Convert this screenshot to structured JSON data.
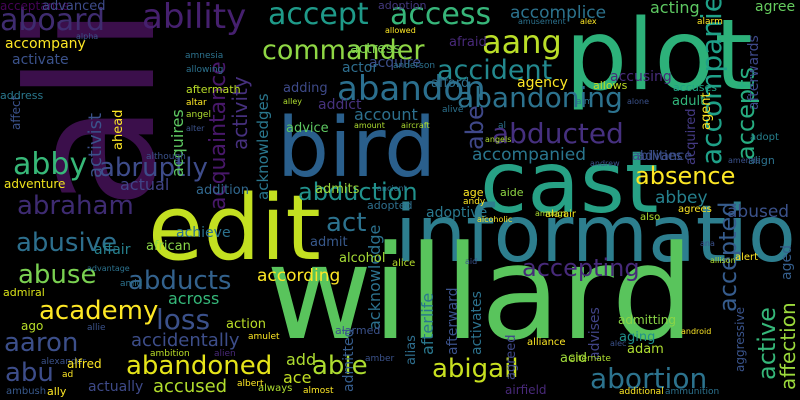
{
  "words": [
    {
      "text": "ali",
      "color": "#3b0f4b"
    },
    {
      "text": "plot",
      "color": "#2db17a"
    },
    {
      "text": "cast",
      "color": "#27a185"
    },
    {
      "text": "bird",
      "color": "#2a5f8c"
    },
    {
      "text": "edit",
      "color": "#c3e021"
    },
    {
      "text": "information",
      "color": "#2d7e8e"
    },
    {
      "text": "willard",
      "color": "#59c45c"
    },
    {
      "text": "ability",
      "color": "#46206f"
    },
    {
      "text": "accept",
      "color": "#1f9a89"
    },
    {
      "text": "access",
      "color": "#37b67a"
    },
    {
      "text": "accomplice",
      "color": "#2c738e"
    },
    {
      "text": "aboard",
      "color": "#3f2c70"
    },
    {
      "text": "commander",
      "color": "#8fd745"
    },
    {
      "text": "aang",
      "color": "#bade28"
    },
    {
      "text": "abandon",
      "color": "#2b6f8e"
    },
    {
      "text": "abandoning",
      "color": "#2c728e"
    },
    {
      "text": "accident",
      "color": "#23888e"
    },
    {
      "text": "abducted",
      "color": "#46307f"
    },
    {
      "text": "abduction",
      "color": "#21918c"
    },
    {
      "text": "absence",
      "color": "#fde725"
    },
    {
      "text": "abruptly",
      "color": "#3e4c8a"
    },
    {
      "text": "abraham",
      "color": "#3e2b72"
    },
    {
      "text": "abusive",
      "color": "#2d6f8d"
    },
    {
      "text": "abuse",
      "color": "#7ad151"
    },
    {
      "text": "abducts",
      "color": "#33628d"
    },
    {
      "text": "academy",
      "color": "#fde725"
    },
    {
      "text": "loss",
      "color": "#3b518b"
    },
    {
      "text": "aaron",
      "color": "#3c4f8a"
    },
    {
      "text": "abu",
      "color": "#3d4d8a"
    },
    {
      "text": "abandoned",
      "color": "#e5e419"
    },
    {
      "text": "able",
      "color": "#addc30"
    },
    {
      "text": "abigail",
      "color": "#c8e020"
    },
    {
      "text": "abortion",
      "color": "#2c738e"
    },
    {
      "text": "accepting",
      "color": "#472a7a"
    },
    {
      "text": "accompanied",
      "color": "#2a768e"
    },
    {
      "text": "accused",
      "color": "#b2dd2d"
    },
    {
      "text": "accidentally",
      "color": "#3d4e8a"
    },
    {
      "text": "according",
      "color": "#fde725"
    },
    {
      "text": "across",
      "color": "#35b779"
    },
    {
      "text": "abbey",
      "color": "#365c8d"
    },
    {
      "text": "abused",
      "color": "#27ad81"
    },
    {
      "text": "accepted",
      "color": "#1fa188"
    },
    {
      "text": "accepts",
      "color": "#35b779"
    },
    {
      "text": "accompanies",
      "color": "#26818e"
    },
    {
      "text": "active",
      "color": "#3b528b"
    },
    {
      "text": "affection",
      "color": "#9bd93c"
    },
    {
      "text": "abe",
      "color": "#3f4889"
    },
    {
      "text": "abby",
      "color": "#37b878"
    },
    {
      "text": "acquaintance",
      "color": "#48186a"
    },
    {
      "text": "acquires",
      "color": "#5ec962"
    },
    {
      "text": "activist",
      "color": "#3b528b"
    },
    {
      "text": "activity",
      "color": "#46307e"
    },
    {
      "text": "acknowledges",
      "color": "#2a778e"
    },
    {
      "text": "acknowledge",
      "color": "#2c718e"
    },
    {
      "text": "accusing",
      "color": "#472c7a"
    },
    {
      "text": "abilities",
      "color": "#3b528b"
    },
    {
      "text": "adoption",
      "color": "#44397f"
    },
    {
      "text": "actress",
      "color": "#7ad151"
    },
    {
      "text": "acquire",
      "color": "#3c4f8a"
    },
    {
      "text": "actor",
      "color": "#2e6e8e"
    },
    {
      "text": "account",
      "color": "#2d708e"
    },
    {
      "text": "acting",
      "color": "#5ec962"
    },
    {
      "text": "agree",
      "color": "#65cb5e"
    },
    {
      "text": "afterwards",
      "color": "#3e4989"
    },
    {
      "text": "afterlife",
      "color": "#2a788e"
    },
    {
      "text": "acceptance",
      "color": "#450457"
    },
    {
      "text": "achieve",
      "color": "#2c728e"
    },
    {
      "text": "actual",
      "color": "#414487"
    },
    {
      "text": "adventure",
      "color": "#f1e51d"
    },
    {
      "text": "affair",
      "color": "#26828e"
    },
    {
      "text": "african",
      "color": "#89d548"
    },
    {
      "text": "addition",
      "color": "#31688e"
    },
    {
      "text": "act",
      "color": "#2c728e"
    },
    {
      "text": "adoptive",
      "color": "#2a788e"
    },
    {
      "text": "admit",
      "color": "#38598c"
    },
    {
      "text": "alcohol",
      "color": "#a5db36"
    },
    {
      "text": "admits",
      "color": "#9dd93b"
    },
    {
      "text": "ahead",
      "color": "#2e6f8e"
    },
    {
      "text": "adopted",
      "color": "#fde725"
    },
    {
      "text": "advance",
      "color": "#3d4d8a"
    },
    {
      "text": "advice",
      "color": "#5ec962"
    },
    {
      "text": "addict",
      "color": "#46327e"
    },
    {
      "text": "adding",
      "color": "#3e4a89"
    },
    {
      "text": "accompany",
      "color": "#fde725"
    },
    {
      "text": "activate",
      "color": "#3b528b"
    },
    {
      "text": "advanced",
      "color": "#3e4c8a"
    },
    {
      "text": "acquired",
      "color": "#443a83"
    },
    {
      "text": "aggressive",
      "color": "#3a548c"
    },
    {
      "text": "aged",
      "color": "#355f8d"
    },
    {
      "text": "adult",
      "color": "#31b57b"
    },
    {
      "text": "afford",
      "color": "#2e6f8e"
    },
    {
      "text": "afraid",
      "color": "#482979"
    },
    {
      "text": "agency",
      "color": "#fde725"
    },
    {
      "text": "allows",
      "color": "#c0df25"
    },
    {
      "text": "alias",
      "color": "#20a386"
    },
    {
      "text": "admitted",
      "color": "#2e6e8e"
    },
    {
      "text": "accuses",
      "color": "#365d8d"
    },
    {
      "text": "advises",
      "color": "#2e6f8e"
    },
    {
      "text": "activates",
      "color": "#414487"
    },
    {
      "text": "agreed",
      "color": "#2c728e"
    },
    {
      "text": "admitting",
      "color": "#3f4889"
    },
    {
      "text": "aging",
      "color": "#8bd646"
    },
    {
      "text": "adam",
      "color": "#21918c"
    },
    {
      "text": "add",
      "color": "#addc30"
    },
    {
      "text": "ace",
      "color": "#addc30"
    },
    {
      "text": "acid",
      "color": "#c2df23"
    },
    {
      "text": "ago",
      "color": "#9fda3a"
    },
    {
      "text": "admiral",
      "color": "#b8de29"
    },
    {
      "text": "actually",
      "color": "#d8e219"
    },
    {
      "text": "action",
      "color": "#3e4a89"
    },
    {
      "text": "agent",
      "color": "#bade28"
    },
    {
      "text": "afterward",
      "color": "#fde725"
    },
    {
      "text": "address",
      "color": "#3b528b"
    },
    {
      "text": "affect",
      "color": "#2a788e"
    },
    {
      "text": "aftermath",
      "color": "#3b528b"
    },
    {
      "text": "age",
      "color": "#bade28"
    },
    {
      "text": "aide",
      "color": "#fde725"
    },
    {
      "text": "alice",
      "color": "#8fd744"
    },
    {
      "text": "alliance",
      "color": "#b5de2b"
    },
    {
      "text": "alert",
      "color": "#fde725"
    },
    {
      "text": "align",
      "color": "#fde725"
    },
    {
      "text": "adopt",
      "color": "#2c728e"
    },
    {
      "text": "agrees",
      "color": "#26818e"
    },
    {
      "text": "also",
      "color": "#fde725"
    },
    {
      "text": "alarm",
      "color": "#addc30"
    },
    {
      "text": "alan",
      "color": "#fde725"
    },
    {
      "text": "air",
      "color": "#fde725"
    },
    {
      "text": "ambition",
      "color": "#f1e51d"
    },
    {
      "text": "alexander",
      "color": "#bade28"
    },
    {
      "text": "alfred",
      "color": "#3b528b"
    },
    {
      "text": "ad",
      "color": "#fde725"
    },
    {
      "text": "ally",
      "color": "#fde725"
    },
    {
      "text": "ambush",
      "color": "#fde725"
    },
    {
      "text": "almost",
      "color": "#38598c"
    },
    {
      "text": "always",
      "color": "#fde725"
    },
    {
      "text": "airfield",
      "color": "#addc30"
    },
    {
      "text": "additional",
      "color": "#482979"
    },
    {
      "text": "ammunition",
      "color": "#fde725"
    },
    {
      "text": "android",
      "color": "#2c728e"
    },
    {
      "text": "amy",
      "color": "#fde725"
    },
    {
      "text": "amber",
      "color": "#fde725"
    },
    {
      "text": "alternate",
      "color": "#3b528b"
    },
    {
      "text": "ambrose",
      "color": "#addc30"
    },
    {
      "text": "alongside",
      "color": "#2c728e"
    },
    {
      "text": "alarmed",
      "color": "#addc30"
    },
    {
      "text": "advantage",
      "color": "#3b528b"
    },
    {
      "text": "amid",
      "color": "#2c728e"
    },
    {
      "text": "allie",
      "color": "#2c728e"
    },
    {
      "text": "alerted",
      "color": "#3b528b"
    },
    {
      "text": "amulet",
      "color": "#3b528b"
    },
    {
      "text": "alien",
      "color": "#fde725"
    },
    {
      "text": "albert",
      "color": "#482979"
    },
    {
      "text": "aid",
      "color": "#fde725"
    },
    {
      "text": "airport",
      "color": "#3b528b"
    },
    {
      "text": "although",
      "color": "#fde725"
    },
    {
      "text": "altar",
      "color": "#3b528b"
    },
    {
      "text": "alter",
      "color": "#fde725"
    },
    {
      "text": "angel",
      "color": "#3b528b"
    },
    {
      "text": "alpha",
      "color": "#addc30"
    },
    {
      "text": "amnesia",
      "color": "#3b528b"
    },
    {
      "text": "allowing",
      "color": "#2c728e"
    },
    {
      "text": "along",
      "color": "#2c728e"
    },
    {
      "text": "anderson",
      "color": "#482979"
    },
    {
      "text": "allowed",
      "color": "#2c728e"
    },
    {
      "text": "alley",
      "color": "#fde725"
    },
    {
      "text": "alive",
      "color": "#addc30"
    },
    {
      "text": "airplane",
      "color": "#2c728e"
    },
    {
      "text": "andie",
      "color": "#3b528b"
    },
    {
      "text": "amount",
      "color": "#fde725"
    },
    {
      "text": "aircraft",
      "color": "#addc30"
    },
    {
      "text": "angels",
      "color": "#addc30"
    },
    {
      "text": "al",
      "color": "#addc30"
    },
    {
      "text": "aim",
      "color": "#2c728e"
    },
    {
      "text": "allison",
      "color": "#2c728e"
    },
    {
      "text": "alone",
      "color": "#addc30"
    },
    {
      "text": "andrew",
      "color": "#3b528b"
    },
    {
      "text": "amends",
      "color": "#3b528b"
    },
    {
      "text": "ana",
      "color": "#3b528b"
    },
    {
      "text": "alec",
      "color": "#3b528b"
    },
    {
      "text": "alcoholic",
      "color": "#3b528b"
    },
    {
      "text": "andy",
      "color": "#fde725"
    },
    {
      "text": "among",
      "color": "#fde725"
    },
    {
      "text": "ancient",
      "color": "#addc30"
    },
    {
      "text": "alex",
      "color": "#2c728e"
    },
    {
      "text": "amusement",
      "color": "#fde725"
    },
    {
      "text": "agreement",
      "color": "#2c728e"
    },
    {
      "text": "ambitious",
      "color": "#fde725"
    },
    {
      "text": "ambulance",
      "color": "#fde725"
    },
    {
      "text": "already",
      "color": "#addc30"
    },
    {
      "text": "amongst",
      "color": "#fde725"
    },
    {
      "text": "allegedly",
      "color": "#2c728e"
    },
    {
      "text": "alamein",
      "color": "#addc30"
    },
    {
      "text": "america",
      "color": "#482979"
    },
    {
      "text": "american",
      "color": "#3b528b"
    },
    {
      "text": "amateur",
      "color": "#2c728e"
    },
    {
      "text": "angeles",
      "color": "#2c728e"
    },
    {
      "text": "aliens",
      "color": "#2c728e"
    }
  ]
}
